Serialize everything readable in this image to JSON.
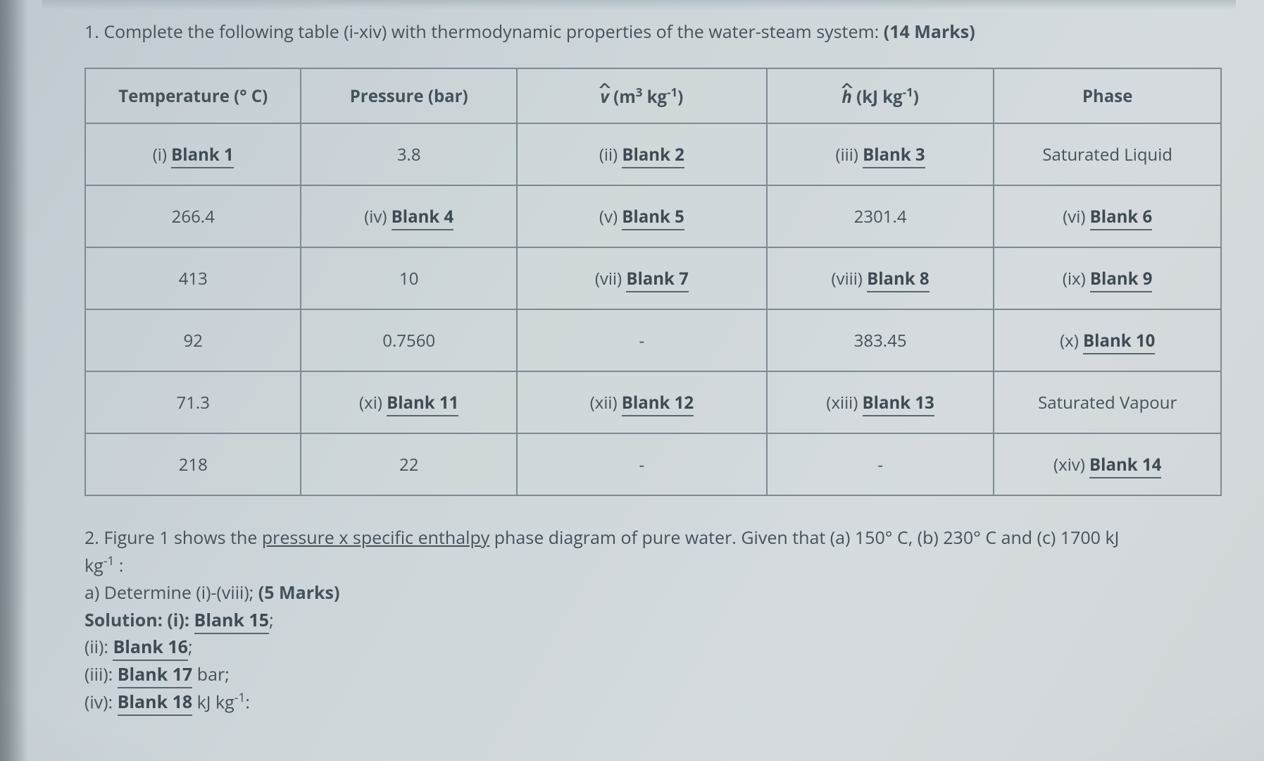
{
  "q1_prefix": "1. Complete the following table (i-xiv) with thermodynamic properties of the water-steam system: ",
  "q1_marks": "(14 Marks)",
  "columns": {
    "c0_a": "Temperature (",
    "c0_deg": "°",
    "c0_b": " C)",
    "c1": "Pressure (bar)",
    "c2_var": "v",
    "c2_open": " (m",
    "c2_exp": "3",
    "c2_mid": " kg",
    "c2_neg": "-1",
    "c2_close": ")",
    "c3_var": "h",
    "c3_open": " (kJ kg",
    "c3_neg": "-1",
    "c3_close": ")",
    "c4": "Phase"
  },
  "rows": [
    {
      "c0": {
        "roman": "(i) ",
        "blank": "Blank 1"
      },
      "c1": {
        "text": "3.8"
      },
      "c2": {
        "roman": "(ii) ",
        "blank": "Blank 2"
      },
      "c3": {
        "roman": "(iii) ",
        "blank": "Blank 3"
      },
      "c4": {
        "text": "Saturated Liquid"
      }
    },
    {
      "c0": {
        "text": "266.4"
      },
      "c1": {
        "roman": "(iv) ",
        "blank": "Blank 4"
      },
      "c2": {
        "roman": "(v) ",
        "blank": "Blank 5"
      },
      "c3": {
        "text": "2301.4"
      },
      "c4": {
        "roman": "(vi) ",
        "blank": "Blank 6"
      }
    },
    {
      "c0": {
        "text": "413"
      },
      "c1": {
        "text": "10"
      },
      "c2": {
        "roman": "(vii) ",
        "blank": "Blank 7"
      },
      "c3": {
        "roman": "(viii) ",
        "blank": "Blank 8"
      },
      "c4": {
        "roman": "(ix) ",
        "blank": "Blank 9"
      }
    },
    {
      "c0": {
        "text": "92"
      },
      "c1": {
        "text": "0.7560"
      },
      "c2": {
        "text": "-"
      },
      "c3": {
        "text": "383.45"
      },
      "c4": {
        "roman": "(x) ",
        "blank": "Blank 10"
      }
    },
    {
      "c0": {
        "text": "71.3"
      },
      "c1": {
        "roman": "(xi) ",
        "blank": "Blank 11"
      },
      "c2": {
        "roman": "(xii) ",
        "blank": "Blank 12"
      },
      "c3": {
        "roman": "(xiii) ",
        "blank": "Blank 13"
      },
      "c4": {
        "text": "Saturated Vapour"
      }
    },
    {
      "c0": {
        "text": "218"
      },
      "c1": {
        "text": "22"
      },
      "c2": {
        "text": "-"
      },
      "c3": {
        "text": "-"
      },
      "c4": {
        "roman": "(xiv) ",
        "blank": "Blank 14"
      }
    }
  ],
  "q2": {
    "line1_a": "2. Figure 1 shows the ",
    "line1_u": "pressure x specific enthalpy",
    "line1_b": " phase diagram of pure water. Given that (a) 150",
    "deg": "°",
    "line1_c": " C, (b) 230",
    "line1_d": " C and (c) 1700 kJ",
    "line2_a": "kg",
    "line2_neg": "-1",
    "line2_b": " :",
    "line3_a": "a) Determine (i)-(viii); ",
    "line3_b": "(5 Marks)",
    "line4_a": "Solution: (i): ",
    "line4_blank": "Blank 15",
    "line4_semi": ";",
    "line5_a": "(ii): ",
    "line5_blank": "Blank 16",
    "line5_semi": ";",
    "line6_a": "(iii): ",
    "line6_blank": "Blank 17",
    "line6_b": " bar;",
    "line7_a": "(iv): ",
    "line7_blank": "Blank 18",
    "line7_b": " kJ kg",
    "line7_neg": "-1",
    "line7_c": ":"
  },
  "colwidths": [
    "19%",
    "19%",
    "22%",
    "20%",
    "20%"
  ]
}
